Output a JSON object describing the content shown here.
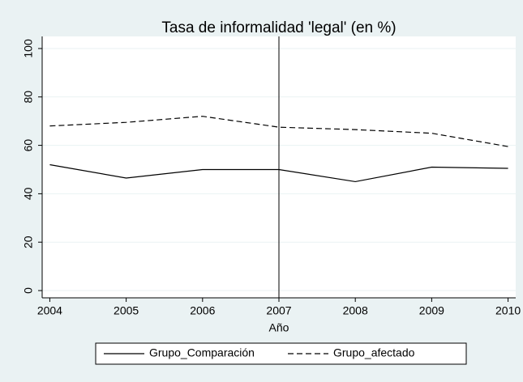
{
  "chart_data": {
    "type": "line",
    "title": "Tasa de informalidad 'legal' (en %)",
    "x_label": "Año",
    "x": [
      2004,
      2005,
      2006,
      2007,
      2008,
      2009,
      2010
    ],
    "series": [
      {
        "name": "Grupo_Comparación",
        "color": "#000000",
        "dash": "solid",
        "values": [
          52,
          46.5,
          50,
          50,
          45,
          51,
          50.5
        ]
      },
      {
        "name": "Grupo_afectado",
        "color": "#000000",
        "dash": "dashed",
        "values": [
          68,
          69.5,
          72,
          67.5,
          66.5,
          65,
          59.5
        ]
      }
    ],
    "xlim": [
      2003.9,
      2010.1
    ],
    "xticks": [
      2004,
      2005,
      2006,
      2007,
      2008,
      2009,
      2010
    ],
    "ylim": [
      -3,
      105
    ],
    "yticks": [
      0,
      20,
      40,
      60,
      80,
      100
    ],
    "xline": 2007,
    "grid": true,
    "legend": "bottom"
  }
}
